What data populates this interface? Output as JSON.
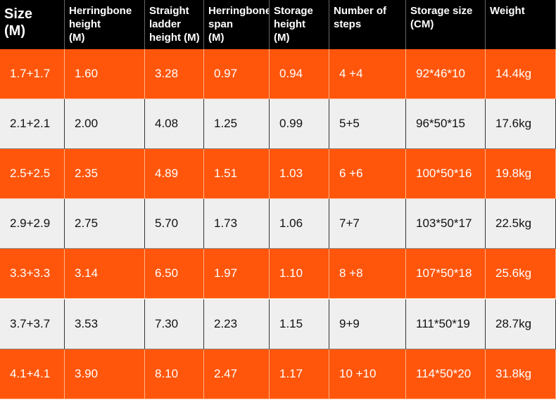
{
  "table": {
    "headers": [
      "Size\n(M)",
      "Herringbone\nheight\n(M)",
      "Straight\nladder\nheight (M)",
      "Herringbone\nspan\n(M)",
      "Storage\nheight\n(M)",
      "Number of\nsteps",
      "Storage size\n(CM)",
      "Weight"
    ],
    "rows": [
      [
        "1.7+1.7",
        "1.60",
        "3.28",
        "0.97",
        "0.94",
        "4 +4",
        "92*46*10",
        "14.4kg"
      ],
      [
        "2.1+2.1",
        "2.00",
        "4.08",
        "1.25",
        "0.99",
        "5+5",
        "96*50*15",
        "17.6kg"
      ],
      [
        "2.5+2.5",
        "2.35",
        "4.89",
        "1.51",
        "1.03",
        "6 +6",
        "100*50*16",
        "19.8kg"
      ],
      [
        "2.9+2.9",
        "2.75",
        "5.70",
        "1.73",
        "1.06",
        "7+7",
        "103*50*17",
        "22.5kg"
      ],
      [
        "3.3+3.3",
        "3.14",
        "6.50",
        "1.97",
        "1.10",
        "8 +8",
        "107*50*18",
        "25.6kg"
      ],
      [
        "3.7+3.7",
        "3.53",
        "7.30",
        "2.23",
        "1.15",
        "9+9",
        "111*50*19",
        "28.7kg"
      ],
      [
        "4.1+4.1",
        "3.90",
        "8.10",
        "2.47",
        "1.17",
        "10 +10",
        "114*50*20",
        "31.8kg"
      ]
    ]
  }
}
